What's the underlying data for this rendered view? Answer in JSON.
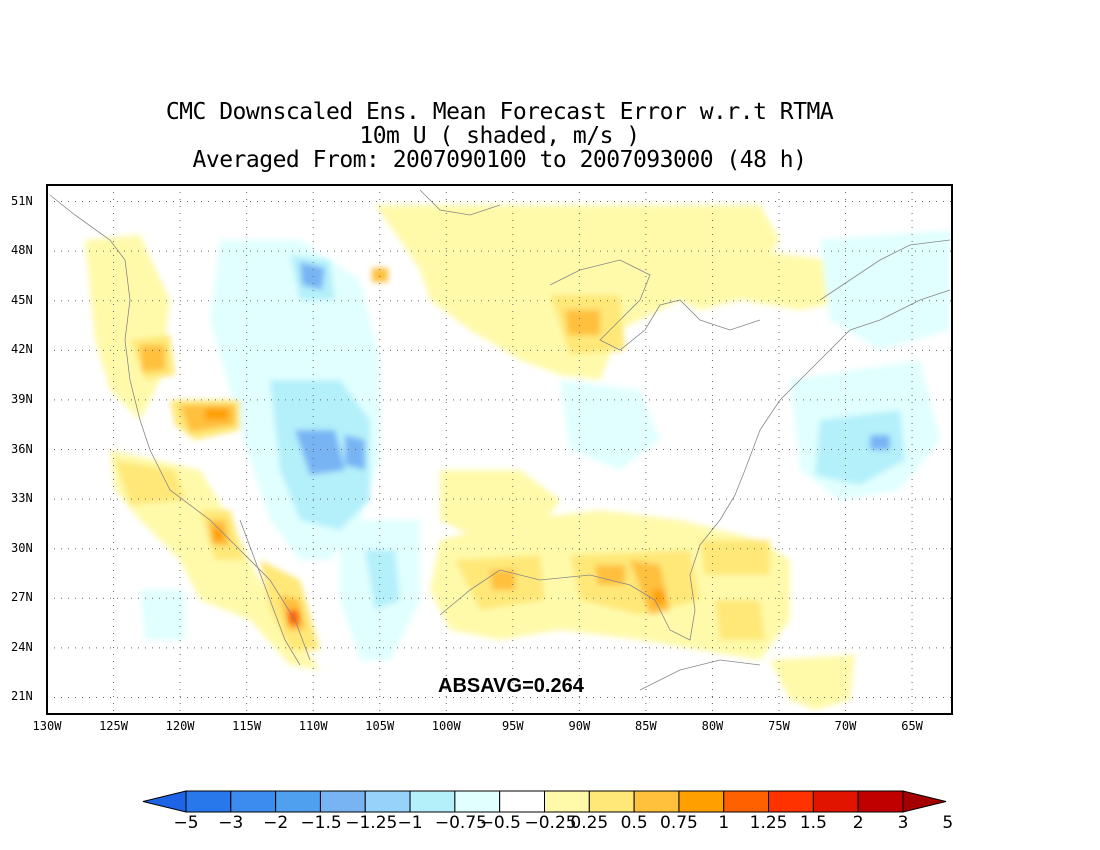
{
  "title": {
    "line1": "CMC Downscaled Ens. Mean Forecast Error w.r.t RTMA",
    "line2": "10m U ( shaded, m/s )",
    "line3": "Averaged From: 2007090100 to 2007093000 (48 h)"
  },
  "map": {
    "lon_range": [
      -130,
      -62
    ],
    "lat_range": [
      20,
      52
    ],
    "lat_ticks": [
      "51N",
      "48N",
      "45N",
      "42N",
      "39N",
      "36N",
      "33N",
      "30N",
      "27N",
      "24N",
      "21N"
    ],
    "lat_values": [
      51,
      48,
      45,
      42,
      39,
      36,
      33,
      30,
      27,
      24,
      21
    ],
    "lon_ticks": [
      "130W",
      "125W",
      "120W",
      "115W",
      "110W",
      "105W",
      "100W",
      "95W",
      "90W",
      "85W",
      "80W",
      "75W",
      "70W",
      "65W"
    ],
    "lon_values": [
      -130,
      -125,
      -120,
      -115,
      -110,
      -105,
      -100,
      -95,
      -90,
      -85,
      -80,
      -75,
      -70,
      -65
    ],
    "grid": true,
    "absavg": "ABSAVG=0.264"
  },
  "colorbar": {
    "labels": [
      "−5",
      "−3",
      "−2",
      "−1.5",
      "−1.25",
      "−1",
      "−0.75",
      "−0.5",
      "−0.25",
      "0.25",
      "0.5",
      "0.75",
      "1",
      "1.25",
      "1.5",
      "2",
      "3",
      "5"
    ],
    "colors": [
      "#1e64e6",
      "#2878ec",
      "#3c8cf0",
      "#50a0f0",
      "#78b4f4",
      "#96d2fa",
      "#b4f0fa",
      "#e1ffff",
      "#ffffff",
      "#fffaaa",
      "#ffe878",
      "#ffc03c",
      "#ffa000",
      "#ff6000",
      "#ff3200",
      "#e11400",
      "#c00000",
      "#a50000"
    ]
  }
}
